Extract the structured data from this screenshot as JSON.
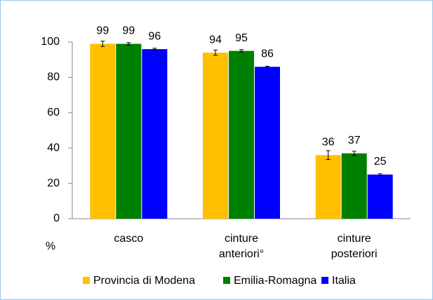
{
  "chart_data": {
    "type": "bar",
    "y_label": "%",
    "categories": [
      "casco",
      "cinture anteriori°",
      "cinture posteriori"
    ],
    "series": [
      {
        "name": "Provincia di Modena",
        "color": "#ffc000",
        "values": [
          99,
          94,
          36
        ],
        "errors": [
          1.5,
          1.5,
          2.5
        ]
      },
      {
        "name": "Emilia-Romagna",
        "color": "#008000",
        "values": [
          99,
          95,
          37
        ],
        "errors": [
          0.7,
          0.7,
          1.2
        ]
      },
      {
        "name": "Italia",
        "color": "#0000ff",
        "values": [
          96,
          86,
          25
        ],
        "errors": [
          0.5,
          0.3,
          0.5
        ]
      }
    ],
    "ylim": [
      0,
      100
    ],
    "yticks": [
      0,
      20,
      40,
      60,
      80,
      100
    ],
    "legend": "bottom"
  }
}
